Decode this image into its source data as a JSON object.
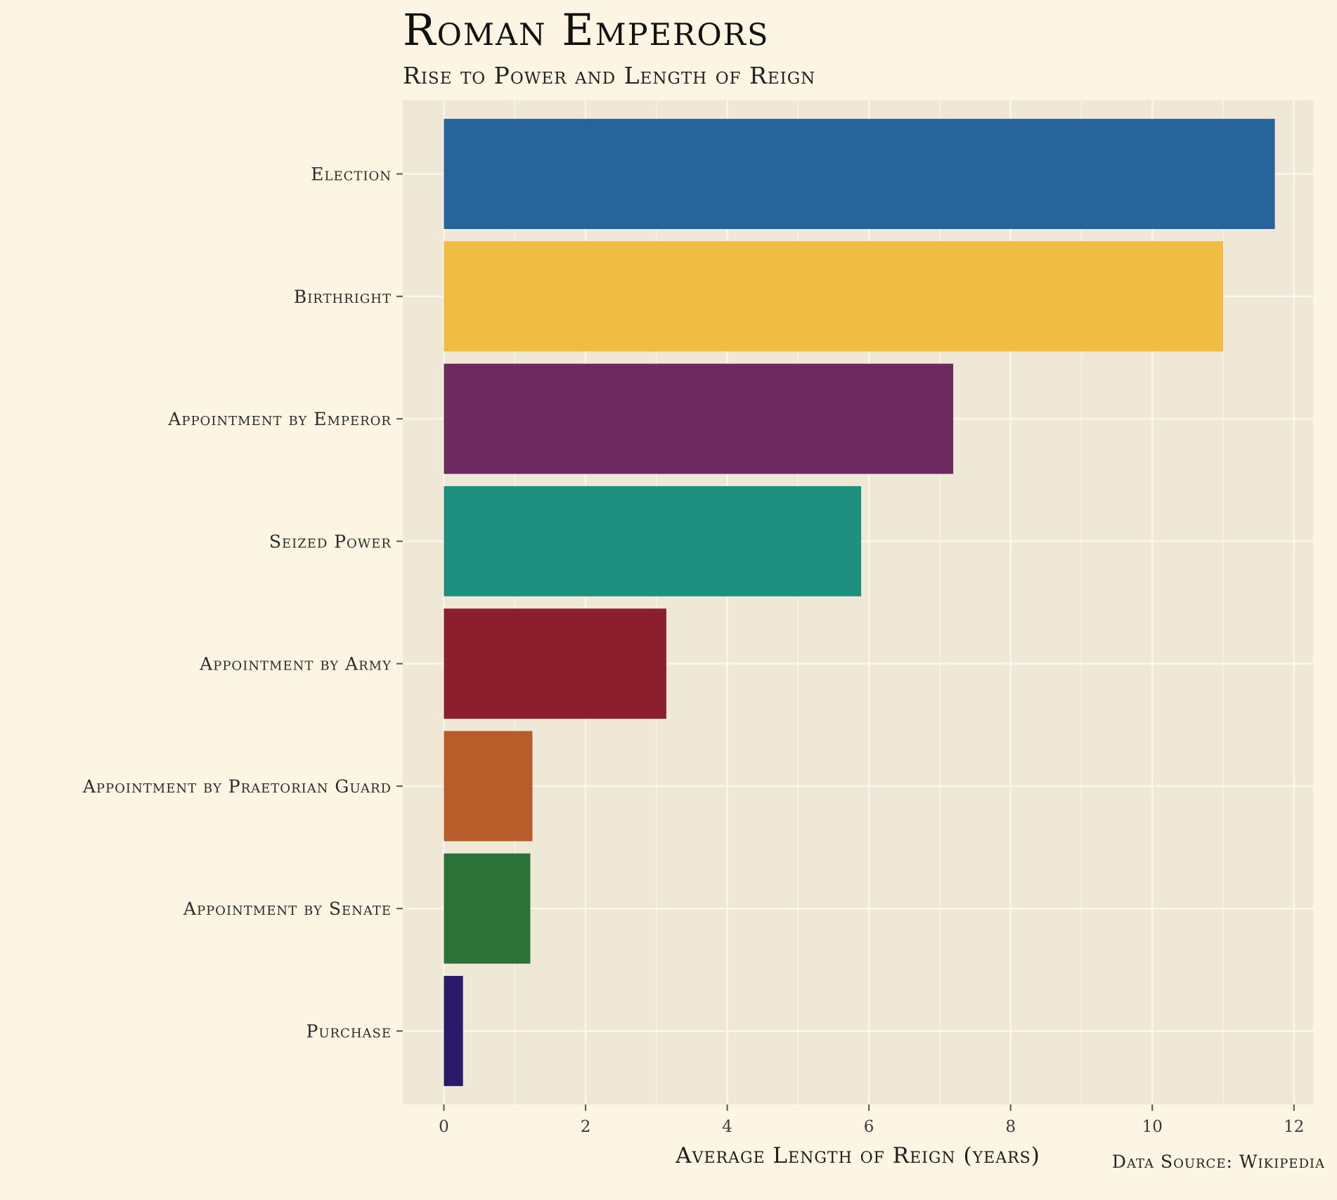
{
  "chart_data": {
    "type": "bar",
    "orientation": "horizontal",
    "title": "Roman Emperors",
    "subtitle": "Rise to Power and Length of Reign",
    "xlabel": "Average Length of Reign (years)",
    "ylabel": "",
    "caption": "Data Source: Wikipedia",
    "xlim": [
      -0.58,
      12.27
    ],
    "xticks": [
      0,
      2,
      4,
      6,
      8,
      10,
      12
    ],
    "grid": true,
    "legend": "none",
    "categories": [
      "Election",
      "Birthright",
      "Appointment by Emperor",
      "Seized Power",
      "Appointment by Army",
      "Appointment by Praetorian Guard",
      "Appointment by Senate",
      "Purchase"
    ],
    "values": [
      11.73,
      11.0,
      7.19,
      5.89,
      3.14,
      1.25,
      1.22,
      0.27
    ],
    "colors": [
      "#27649c",
      "#f0bc42",
      "#6c2a60",
      "#1f8f80",
      "#8c1f2e",
      "#b65d29",
      "#2c7138",
      "#2a1b6a"
    ]
  },
  "style": {
    "background": "#fcf5e3",
    "panel_background": "#efe8d6",
    "grid_color": "#fbf7ee"
  }
}
